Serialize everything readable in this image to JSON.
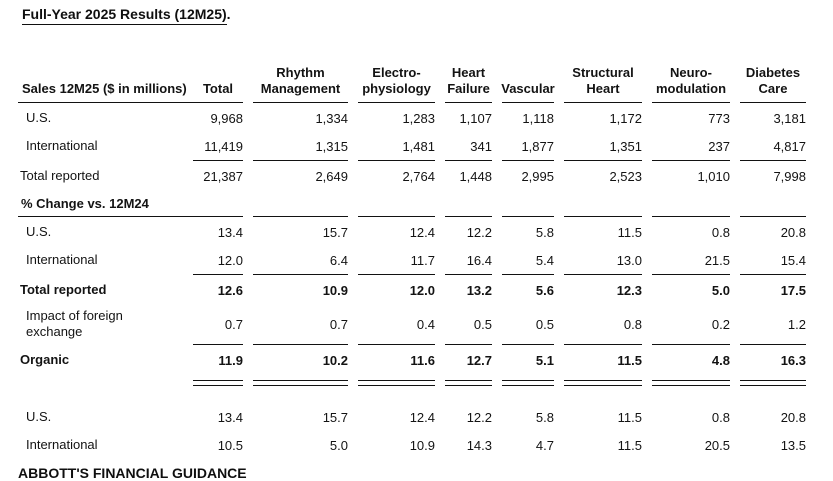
{
  "page": {
    "title": "Full-Year 2025 Results (12M25)",
    "title_suffix": ".",
    "footer_heading": "ABBOTT'S FINANCIAL GUIDANCE"
  },
  "table": {
    "label_header": "Sales 12M25 ($ in millions)",
    "columns": [
      "Total",
      "Rhythm\nManagement",
      "Electro-\nphysiology",
      "Heart\nFailure",
      "Vascular",
      "Structural\nHeart",
      "Neuro-\nmodulation",
      "Diabetes\nCare"
    ],
    "sales": {
      "us": {
        "label": "U.S.",
        "values": [
          "9,968",
          "1,334",
          "1,283",
          "1,107",
          "1,118",
          "1,172",
          "773",
          "3,181"
        ]
      },
      "intl": {
        "label": "International",
        "values": [
          "11,419",
          "1,315",
          "1,481",
          "341",
          "1,877",
          "1,351",
          "237",
          "4,817"
        ]
      },
      "total": {
        "label": "Total reported",
        "values": [
          "21,387",
          "2,649",
          "2,764",
          "1,448",
          "2,995",
          "2,523",
          "1,010",
          "7,998"
        ]
      }
    },
    "pct_change": {
      "heading": "% Change vs. 12M24",
      "us": {
        "label": "U.S.",
        "values": [
          "13.4",
          "15.7",
          "12.4",
          "12.2",
          "5.8",
          "11.5",
          "0.8",
          "20.8"
        ]
      },
      "intl": {
        "label": "International",
        "values": [
          "12.0",
          "6.4",
          "11.7",
          "16.4",
          "5.4",
          "13.0",
          "21.5",
          "15.4"
        ]
      },
      "total": {
        "label": "Total reported",
        "values": [
          "12.6",
          "10.9",
          "12.0",
          "13.2",
          "5.6",
          "12.3",
          "5.0",
          "17.5"
        ]
      },
      "fx": {
        "label": "Impact of foreign\nexchange",
        "values": [
          "0.7",
          "0.7",
          "0.4",
          "0.5",
          "0.5",
          "0.8",
          "0.2",
          "1.2"
        ]
      },
      "organic": {
        "label": "Organic",
        "values": [
          "11.9",
          "10.2",
          "11.6",
          "12.7",
          "5.1",
          "11.5",
          "4.8",
          "16.3"
        ]
      }
    },
    "organic_detail": {
      "us": {
        "label": "U.S.",
        "values": [
          "13.4",
          "15.7",
          "12.4",
          "12.2",
          "5.8",
          "11.5",
          "0.8",
          "20.8"
        ]
      },
      "intl": {
        "label": "International",
        "values": [
          "10.5",
          "5.0",
          "10.9",
          "14.3",
          "4.7",
          "11.5",
          "20.5",
          "13.5"
        ]
      }
    }
  }
}
